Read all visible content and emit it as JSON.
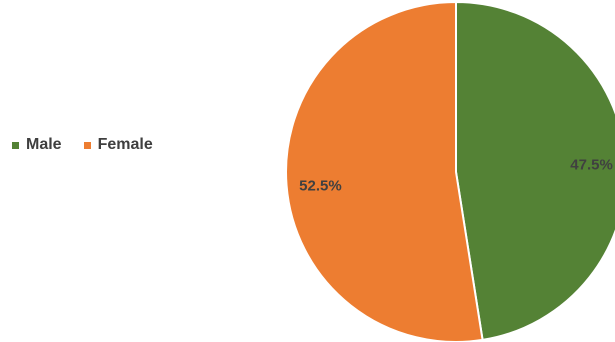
{
  "chart_data": {
    "type": "pie",
    "categories": [
      "Male",
      "Female"
    ],
    "values": [
      47.5,
      52.5
    ],
    "data_labels": [
      "47.5%",
      "52.5%"
    ],
    "colors": [
      "#548235",
      "#ed7d31"
    ],
    "legend_position": "left",
    "start_angle": "top",
    "direction": "clockwise"
  }
}
